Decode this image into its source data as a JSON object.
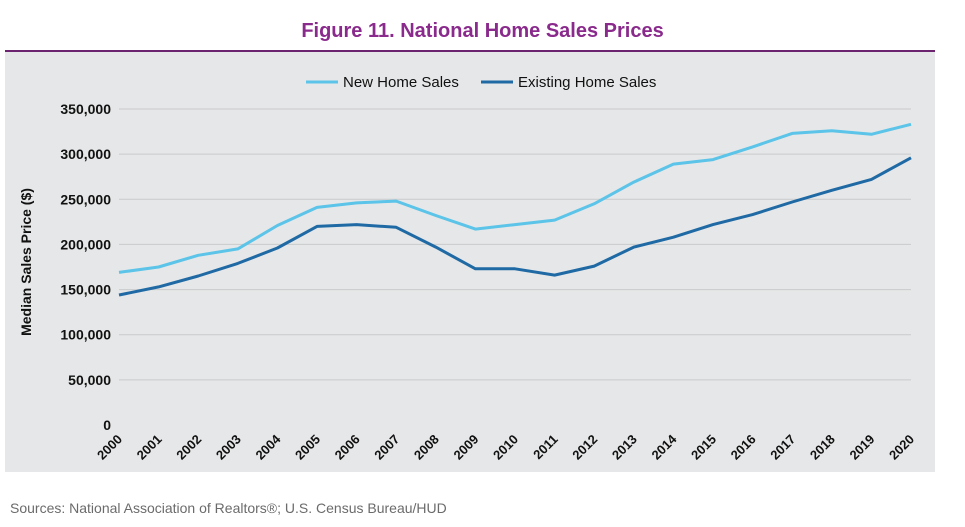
{
  "title": "Figure 11. National Home Sales Prices",
  "source": "Sources: National Association of Realtors®; U.S. Census Bureau/HUD",
  "colors": {
    "title": "#8a2a8c",
    "new": "#5bc4e8",
    "existing": "#1f6aa5",
    "panel": "#e6e7e8"
  },
  "chart_data": {
    "type": "line",
    "title": "Figure 11. National Home Sales Prices",
    "ylabel": "Median Sales Price ($)",
    "xlabel": "",
    "ylim": [
      0,
      350000
    ],
    "yticks": [
      "0",
      "50,000",
      "100,000",
      "150,000",
      "200,000",
      "250,000",
      "300,000",
      "350,000"
    ],
    "ytick_values": [
      0,
      50000,
      100000,
      150000,
      200000,
      250000,
      300000,
      350000
    ],
    "legend_position": "top-center",
    "grid": true,
    "x": [
      "2000",
      "2001",
      "2002",
      "2003",
      "2004",
      "2005",
      "2006",
      "2007",
      "2008",
      "2009",
      "2010",
      "2011",
      "2012",
      "2013",
      "2014",
      "2015",
      "2016",
      "2017",
      "2018",
      "2019",
      "2020"
    ],
    "series": [
      {
        "name": "New Home Sales",
        "color": "#5bc4e8",
        "values": [
          169000,
          175000,
          188000,
          195000,
          221000,
          241000,
          246000,
          248000,
          232000,
          217000,
          222000,
          227000,
          245000,
          269000,
          289000,
          294000,
          308000,
          323000,
          326000,
          322000,
          333000
        ]
      },
      {
        "name": "Existing Home Sales",
        "color": "#1f6aa5",
        "values": [
          144000,
          153000,
          165000,
          179000,
          196000,
          220000,
          222000,
          219000,
          197000,
          173000,
          173000,
          166000,
          176000,
          197000,
          208000,
          222000,
          233000,
          247000,
          260000,
          272000,
          296000
        ]
      }
    ]
  }
}
